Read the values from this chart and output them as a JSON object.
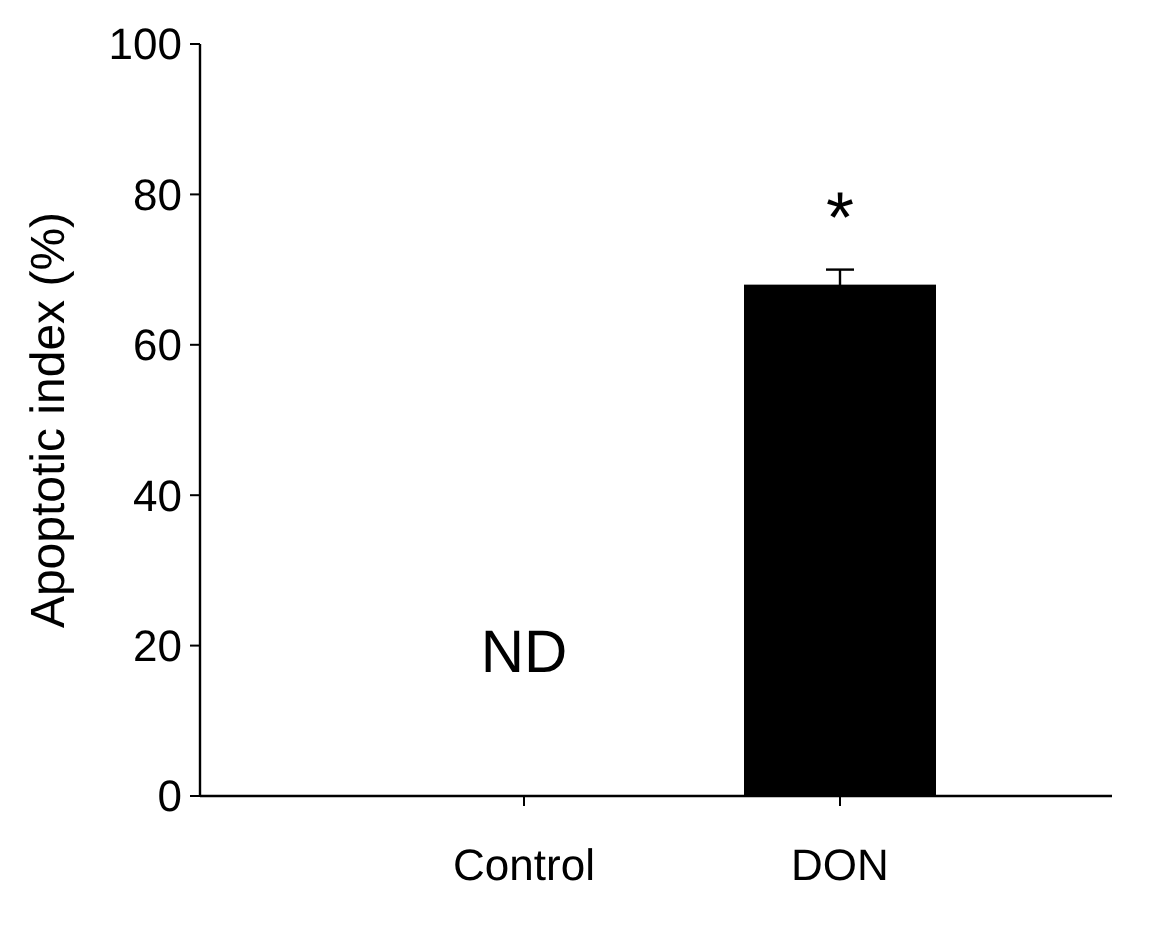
{
  "chart_data": {
    "type": "bar",
    "ylabel": "Apoptotic index (%)",
    "categories": [
      "Control",
      "DON"
    ],
    "values": [
      null,
      68
    ],
    "errors": [
      null,
      2
    ],
    "color": "#000000",
    "ylim": [
      0,
      100
    ],
    "yticks": [
      0,
      20,
      40,
      60,
      80,
      100
    ],
    "grid": false,
    "annotations": [
      "ND",
      "*"
    ]
  }
}
